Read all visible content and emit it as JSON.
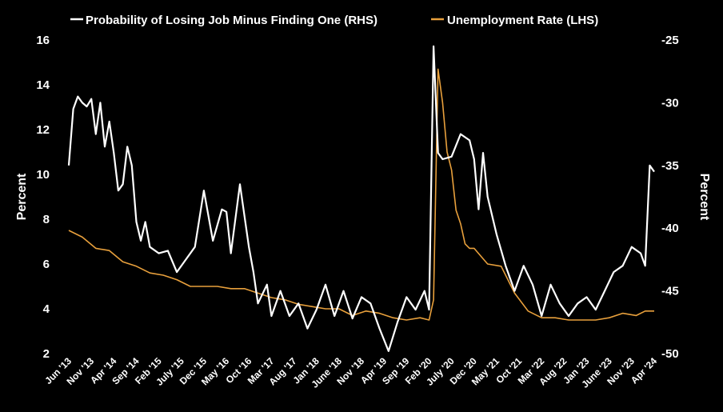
{
  "chart_data": {
    "type": "line",
    "colors": {
      "background": "#000000",
      "rhs_series": "#ffffff",
      "lhs_series": "#e8a03c",
      "text": "#ffffff"
    },
    "legend": {
      "placement": "top",
      "items": [
        {
          "key": "rhs",
          "label": "Probability of Losing Job Minus Finding One (RHS)",
          "color": "#ffffff"
        },
        {
          "key": "lhs",
          "label": "Unemployment Rate (LHS)",
          "color": "#e8a03c"
        }
      ]
    },
    "left_axis": {
      "label": "Percent",
      "min": 2,
      "max": 16,
      "ticks": [
        "2",
        "4",
        "6",
        "8",
        "10",
        "12",
        "14",
        "16"
      ]
    },
    "right_axis": {
      "label": "Percent",
      "min": -50,
      "max": -25,
      "ticks": [
        "-50",
        "-45",
        "-40",
        "-35",
        "-30",
        "-25"
      ]
    },
    "x_axis": {
      "start": "2013-06",
      "end": "2024-04",
      "tick_labels": [
        "Jun '13",
        "Nov '13",
        "Apr '14",
        "Sep '14",
        "Feb '15",
        "July '15",
        "Dec '15",
        "May '16",
        "Oct '16",
        "Mar '17",
        "Aug '17",
        "Jan '18",
        "June '18",
        "Nov '18",
        "Apr '19",
        "Sep '19",
        "Feb '20",
        "July '20",
        "Dec '20",
        "May '21",
        "Oct '21",
        "Mar '22",
        "Aug '22",
        "Jan '23",
        "June '23",
        "Nov '23",
        "Apr '24"
      ]
    },
    "series": [
      {
        "name": "Unemployment Rate (LHS)",
        "axis": "left",
        "x": [
          "2013-06",
          "2013-09",
          "2013-12",
          "2014-03",
          "2014-06",
          "2014-09",
          "2014-12",
          "2015-03",
          "2015-06",
          "2015-09",
          "2015-12",
          "2016-03",
          "2016-06",
          "2016-09",
          "2016-12",
          "2017-03",
          "2017-06",
          "2017-09",
          "2017-12",
          "2018-03",
          "2018-06",
          "2018-09",
          "2018-12",
          "2019-03",
          "2019-06",
          "2019-09",
          "2019-12",
          "2020-02",
          "2020-03",
          "2020-04",
          "2020-05",
          "2020-06",
          "2020-07",
          "2020-08",
          "2020-09",
          "2020-10",
          "2020-11",
          "2020-12",
          "2021-03",
          "2021-06",
          "2021-09",
          "2021-12",
          "2022-03",
          "2022-06",
          "2022-09",
          "2022-12",
          "2023-03",
          "2023-06",
          "2023-09",
          "2023-12",
          "2024-02",
          "2024-04"
        ],
        "values": [
          7.5,
          7.2,
          6.7,
          6.6,
          6.1,
          5.9,
          5.6,
          5.5,
          5.3,
          5.0,
          5.0,
          5.0,
          4.9,
          4.9,
          4.7,
          4.5,
          4.4,
          4.2,
          4.1,
          4.0,
          4.0,
          3.7,
          3.9,
          3.8,
          3.6,
          3.5,
          3.6,
          3.5,
          4.4,
          14.7,
          13.2,
          11.0,
          10.2,
          8.4,
          7.8,
          6.9,
          6.7,
          6.7,
          6.0,
          5.9,
          4.7,
          3.9,
          3.6,
          3.6,
          3.5,
          3.5,
          3.5,
          3.6,
          3.8,
          3.7,
          3.9,
          3.9
        ]
      },
      {
        "name": "Probability of Losing Job Minus Finding One (RHS)",
        "axis": "right",
        "x": [
          "2013-06",
          "2013-07",
          "2013-08",
          "2013-09",
          "2013-10",
          "2013-11",
          "2013-12",
          "2014-01",
          "2014-02",
          "2014-03",
          "2014-04",
          "2014-05",
          "2014-06",
          "2014-07",
          "2014-08",
          "2014-09",
          "2014-10",
          "2014-11",
          "2014-12",
          "2015-02",
          "2015-04",
          "2015-06",
          "2015-08",
          "2015-10",
          "2015-12",
          "2016-02",
          "2016-04",
          "2016-05",
          "2016-06",
          "2016-08",
          "2016-10",
          "2016-11",
          "2016-12",
          "2017-02",
          "2017-03",
          "2017-05",
          "2017-07",
          "2017-09",
          "2017-11",
          "2018-01",
          "2018-03",
          "2018-05",
          "2018-07",
          "2018-09",
          "2018-11",
          "2019-01",
          "2019-03",
          "2019-05",
          "2019-07",
          "2019-09",
          "2019-11",
          "2020-01",
          "2020-02",
          "2020-03",
          "2020-04",
          "2020-05",
          "2020-07",
          "2020-09",
          "2020-11",
          "2020-12",
          "2021-01",
          "2021-02",
          "2021-03",
          "2021-05",
          "2021-07",
          "2021-09",
          "2021-11",
          "2022-01",
          "2022-03",
          "2022-05",
          "2022-07",
          "2022-09",
          "2022-11",
          "2023-01",
          "2023-03",
          "2023-05",
          "2023-07",
          "2023-09",
          "2023-11",
          "2024-01",
          "2024-02",
          "2024-03",
          "2024-04"
        ],
        "values": [
          -35,
          -30.5,
          -29.5,
          -30,
          -30.3,
          -29.7,
          -32.5,
          -30,
          -33.5,
          -31.5,
          -34,
          -37,
          -36.5,
          -33.5,
          -35,
          -39.5,
          -41,
          -39.5,
          -41.5,
          -42,
          -41.8,
          -43.5,
          -42.5,
          -41.5,
          -37,
          -41,
          -38.5,
          -38.7,
          -42,
          -36.5,
          -41.5,
          -43.5,
          -46,
          -44.5,
          -47,
          -45,
          -47,
          -46,
          -48,
          -46.5,
          -44.5,
          -47,
          -45,
          -47.2,
          -45.5,
          -46,
          -48,
          -49.8,
          -47.5,
          -45.5,
          -46.5,
          -45,
          -46.5,
          -25.5,
          -34,
          -34.5,
          -34.3,
          -32.5,
          -33,
          -34.5,
          -38.5,
          -34,
          -37.5,
          -40.5,
          -43,
          -45,
          -43,
          -44.5,
          -47,
          -44.5,
          -46,
          -47,
          -46,
          -45.5,
          -46.5,
          -45,
          -43.5,
          -43,
          -41.5,
          -42,
          -43,
          -35,
          -35.5
        ]
      }
    ]
  }
}
